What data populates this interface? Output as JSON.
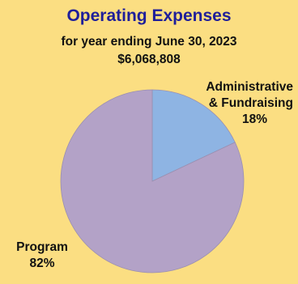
{
  "chart_data": {
    "type": "pie",
    "title": "Operating Expenses",
    "subtitle": "for year ending June 30, 2023",
    "total": "$6,068,808",
    "slices": [
      {
        "label_lines": [
          "Administrative",
          "& Fundraising"
        ],
        "percent_label": "18%",
        "value": 18,
        "color": "#8eb4e3"
      },
      {
        "label_lines": [
          "Program"
        ],
        "percent_label": "82%",
        "value": 82,
        "color": "#b3a2c7"
      }
    ],
    "background": "#fbde82",
    "title_color": "#1f1f9a"
  }
}
